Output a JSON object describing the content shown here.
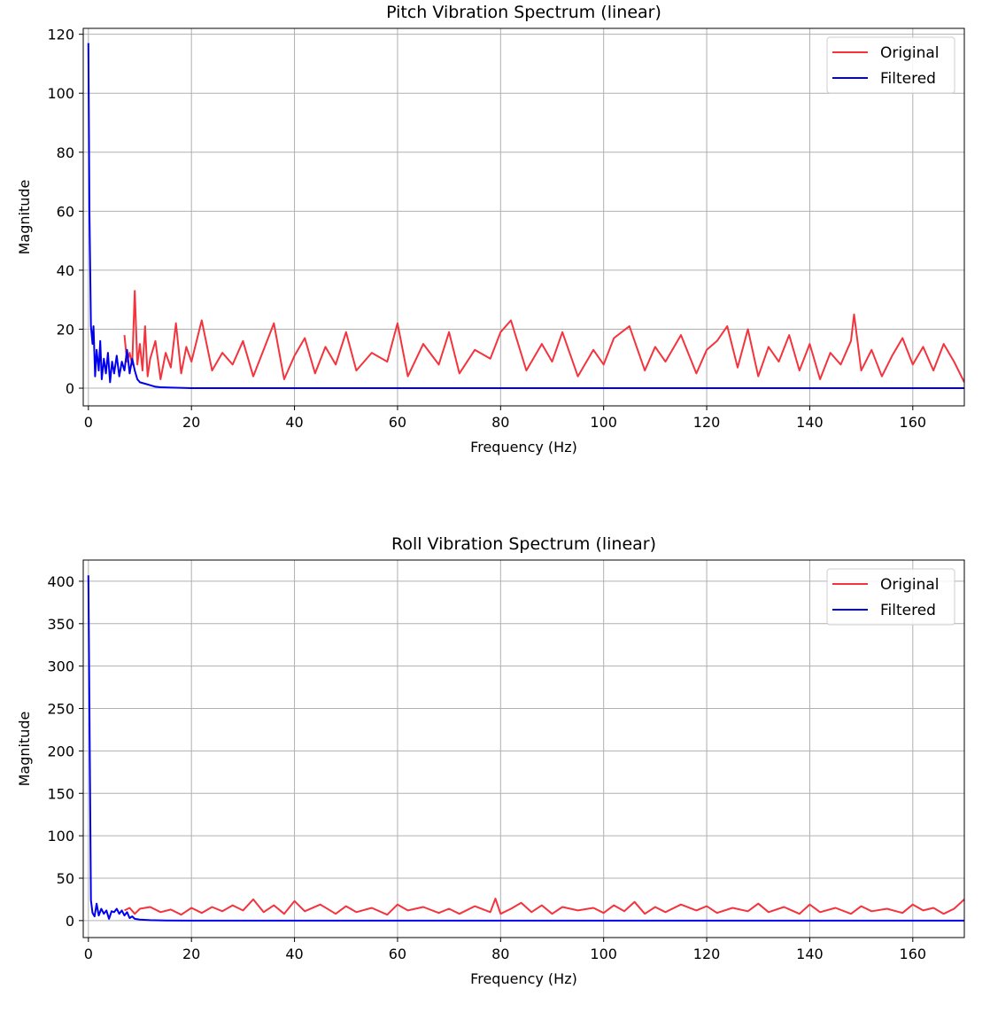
{
  "chart_data": [
    {
      "type": "line",
      "title": "Pitch Vibration Spectrum (linear)",
      "xlabel": "Frequency (Hz)",
      "ylabel": "Magnitude",
      "xlim": [
        -1,
        170
      ],
      "ylim": [
        -6,
        122
      ],
      "xticks": [
        0,
        20,
        40,
        60,
        80,
        100,
        120,
        140,
        160
      ],
      "yticks": [
        0,
        20,
        40,
        60,
        80,
        100,
        120
      ],
      "grid": true,
      "legend": "top-right",
      "series": [
        {
          "name": "Original",
          "color": "#f4333d",
          "x": [
            7,
            7.5,
            8,
            8.5,
            9,
            9.5,
            10,
            10.5,
            11,
            11.5,
            12,
            13,
            14,
            15,
            16,
            17,
            18,
            19,
            20,
            22,
            24,
            26,
            28,
            30,
            32,
            34,
            36,
            38,
            40,
            42,
            44,
            46,
            48,
            50,
            52,
            55,
            58,
            60,
            62,
            65,
            68,
            70,
            72,
            75,
            78,
            80,
            82,
            85,
            88,
            90,
            92,
            95,
            98,
            100,
            102,
            105,
            108,
            110,
            112,
            115,
            118,
            120,
            122,
            124,
            126,
            128,
            130,
            132,
            134,
            136,
            138,
            140,
            142,
            144,
            146,
            148,
            148.6,
            150,
            152,
            154,
            156,
            158,
            160,
            162,
            164,
            166,
            168,
            170
          ],
          "values": [
            18,
            9,
            12,
            8,
            33,
            8,
            15,
            6,
            21,
            4,
            10,
            16,
            3,
            12,
            7,
            22,
            5,
            14,
            9,
            23,
            6,
            12,
            8,
            16,
            4,
            13,
            22,
            3,
            11,
            17,
            5,
            14,
            8,
            19,
            6,
            12,
            9,
            22,
            4,
            15,
            8,
            19,
            5,
            13,
            10,
            19,
            23,
            6,
            15,
            9,
            19,
            4,
            13,
            8,
            17,
            21,
            6,
            14,
            9,
            18,
            5,
            13,
            16,
            21,
            7,
            20,
            4,
            14,
            9,
            18,
            6,
            15,
            3,
            12,
            8,
            16,
            25,
            6,
            13,
            4,
            11,
            17,
            8,
            14,
            6,
            15,
            9,
            2
          ]
        },
        {
          "name": "Filtered",
          "color": "#0000ee",
          "x": [
            0,
            0.2,
            0.5,
            0.8,
            1.0,
            1.3,
            1.6,
            2.0,
            2.3,
            2.6,
            3.0,
            3.4,
            3.8,
            4.2,
            4.6,
            5.0,
            5.5,
            6.0,
            6.5,
            7.0,
            7.5,
            8.0,
            8.5,
            9.0,
            9.5,
            10.0,
            11,
            12,
            13,
            14,
            16,
            20,
            40,
            80,
            120,
            170
          ],
          "values": [
            117,
            60,
            21,
            15,
            21,
            4,
            13,
            6,
            16,
            3,
            10,
            5,
            12,
            2,
            9,
            5,
            11,
            4,
            9,
            6,
            13,
            5,
            10,
            6,
            3,
            2,
            1.5,
            1,
            0.5,
            0.3,
            0.2,
            0,
            0,
            0,
            0,
            0
          ]
        }
      ]
    },
    {
      "type": "line",
      "title": "Roll  Vibration Spectrum (linear)",
      "xlabel": "Frequency (Hz)",
      "ylabel": "Magnitude",
      "xlim": [
        -1,
        170
      ],
      "ylim": [
        -20,
        425
      ],
      "xticks": [
        0,
        20,
        40,
        60,
        80,
        100,
        120,
        140,
        160
      ],
      "yticks": [
        0,
        50,
        100,
        150,
        200,
        250,
        300,
        350,
        400
      ],
      "grid": true,
      "legend": "top-right",
      "series": [
        {
          "name": "Original",
          "color": "#f4333d",
          "x": [
            7,
            8,
            9,
            10,
            12,
            14,
            16,
            18,
            20,
            22,
            24,
            26,
            28,
            30,
            32,
            34,
            36,
            38,
            40,
            42,
            45,
            48,
            50,
            52,
            55,
            58,
            60,
            62,
            65,
            68,
            70,
            72,
            75,
            78,
            79,
            80,
            82,
            84,
            86,
            88,
            90,
            92,
            95,
            98,
            100,
            102,
            104,
            106,
            108,
            110,
            112,
            115,
            118,
            120,
            122,
            125,
            128,
            130,
            132,
            135,
            138,
            140,
            142,
            145,
            148,
            150,
            152,
            155,
            158,
            160,
            162,
            164,
            166,
            168,
            170
          ],
          "values": [
            12,
            15,
            8,
            14,
            16,
            10,
            13,
            7,
            15,
            9,
            16,
            11,
            18,
            12,
            25,
            10,
            18,
            8,
            23,
            11,
            19,
            8,
            17,
            10,
            15,
            7,
            19,
            12,
            16,
            9,
            14,
            8,
            17,
            10,
            26,
            8,
            14,
            21,
            10,
            18,
            8,
            16,
            12,
            15,
            9,
            18,
            11,
            22,
            8,
            16,
            10,
            19,
            12,
            17,
            9,
            15,
            11,
            20,
            10,
            16,
            8,
            19,
            10,
            15,
            8,
            17,
            11,
            14,
            9,
            19,
            12,
            15,
            8,
            14,
            25
          ]
        },
        {
          "name": "Filtered",
          "color": "#0000ee",
          "x": [
            0,
            0.2,
            0.5,
            0.8,
            1.2,
            1.6,
            2.0,
            2.5,
            3.0,
            3.5,
            4.0,
            4.5,
            5.0,
            5.5,
            6.0,
            6.5,
            7.0,
            7.5,
            8.0,
            8.5,
            9.0,
            10,
            12,
            15,
            20,
            40,
            80,
            120,
            170
          ],
          "values": [
            407,
            250,
            24,
            9,
            5,
            20,
            6,
            14,
            8,
            12,
            2,
            11,
            10,
            14,
            8,
            12,
            6,
            10,
            3,
            5,
            2,
            1.2,
            0.5,
            0.2,
            0,
            0,
            0,
            0,
            0
          ]
        }
      ]
    }
  ]
}
